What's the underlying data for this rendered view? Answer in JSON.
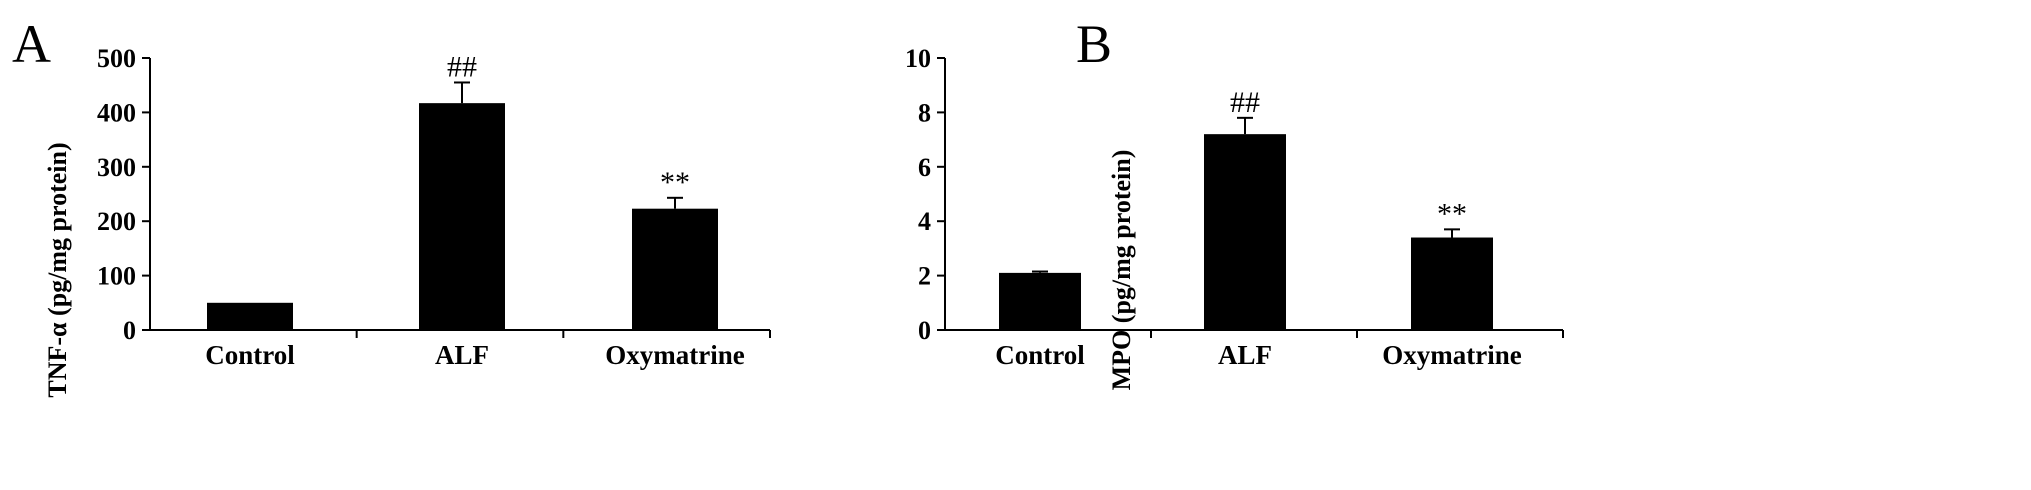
{
  "chart_data": [
    {
      "panel": "A",
      "type": "bar",
      "categories": [
        "Control",
        "ALF",
        "Oxymatrine"
      ],
      "values": [
        50,
        417,
        223
      ],
      "errors": [
        0,
        38,
        20
      ],
      "annotations": [
        "",
        "##",
        "**"
      ],
      "xlabel": "",
      "ylabel": "TNF-α (pg/mg protein)",
      "ylim": [
        0,
        500
      ],
      "yticks": [
        "0",
        "100",
        "200",
        "300",
        "400",
        "500"
      ],
      "bar_color": "#000000",
      "grid": false
    },
    {
      "panel": "B",
      "type": "bar",
      "categories": [
        "Control",
        "ALF",
        "Oxymatrine"
      ],
      "values": [
        2.1,
        7.2,
        3.4
      ],
      "errors": [
        0.05,
        0.6,
        0.3
      ],
      "annotations": [
        "",
        "##",
        "**"
      ],
      "xlabel": "",
      "ylabel": "MPO (pg/mg protein)",
      "ylim": [
        0,
        10
      ],
      "yticks": [
        "0",
        "2",
        "4",
        "6",
        "8",
        "10"
      ],
      "bar_color": "#000000",
      "grid": false
    }
  ]
}
